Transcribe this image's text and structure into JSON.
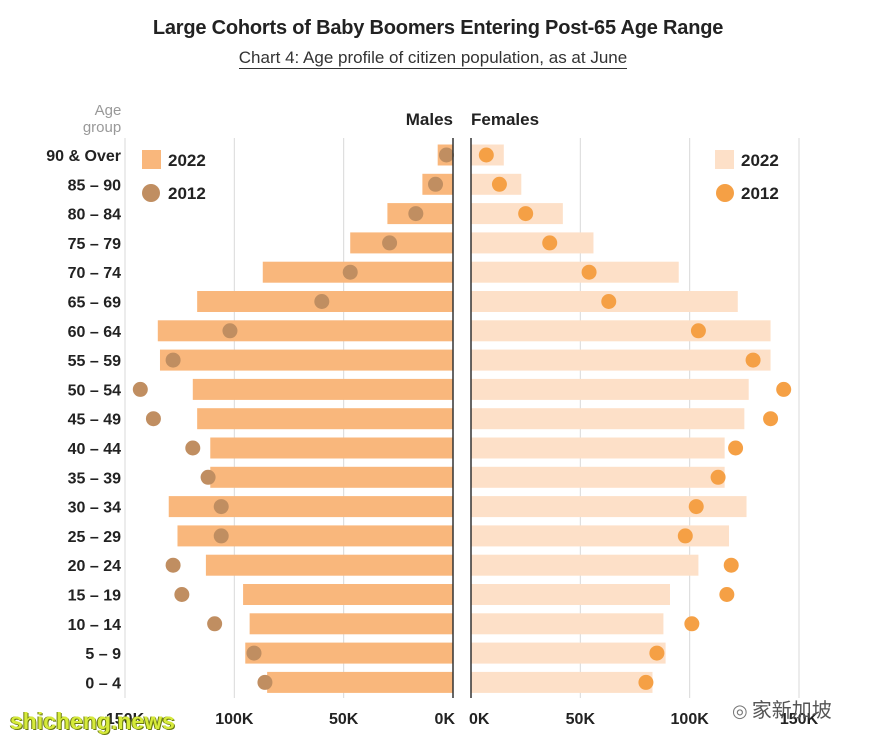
{
  "title": "Large Cohorts of Baby Boomers Entering Post-65 Age Range",
  "subtitle": "Chart 4: Age profile of citizen population, as at June",
  "colors": {
    "male_2022": "#f9b77c",
    "male_2012": "#c08e61",
    "female_2022": "#fde0c8",
    "female_2012": "#f5a045",
    "grid": "#d9d9d9",
    "axis": "#333333"
  },
  "watermark_left": "shicheng.news",
  "watermark_right": "家新加坡",
  "chart_data": {
    "type": "bar",
    "subtype": "population-pyramid",
    "title": "Large Cohorts of Baby Boomers Entering Post-65 Age Range",
    "subtitle": "Chart 4: Age profile of citizen population, as at June",
    "y_axis_label": "Age group",
    "panel_labels": {
      "left": "Males",
      "right": "Females"
    },
    "categories": [
      "90 & Over",
      "85 – 90",
      "80 – 84",
      "75 – 79",
      "70 – 74",
      "65 – 69",
      "60 – 64",
      "55 – 59",
      "50 – 54",
      "45 – 49",
      "40 – 44",
      "35 – 39",
      "30 – 34",
      "25 – 29",
      "20 – 24",
      "15 – 19",
      "10 – 14",
      "5 – 9",
      "0 – 4"
    ],
    "xlim": [
      0,
      150000
    ],
    "x_ticks": [
      {
        "value": 150000,
        "label": "150K"
      },
      {
        "value": 100000,
        "label": "100K"
      },
      {
        "value": 50000,
        "label": "50K"
      },
      {
        "value": 0,
        "label": "0K"
      }
    ],
    "legend": {
      "left": {
        "position": "top-left",
        "entries": [
          {
            "label": "2022",
            "marker": "bar"
          },
          {
            "label": "2012",
            "marker": "dot"
          }
        ]
      },
      "right": {
        "position": "top-right",
        "entries": [
          {
            "label": "2022",
            "marker": "bar"
          },
          {
            "label": "2012",
            "marker": "dot"
          }
        ]
      }
    },
    "series": [
      {
        "name": "Males 2022",
        "kind": "bar",
        "side": "left",
        "values": [
          7000,
          14000,
          30000,
          47000,
          87000,
          117000,
          135000,
          134000,
          119000,
          117000,
          111000,
          111000,
          130000,
          126000,
          113000,
          96000,
          93000,
          95000,
          85000
        ]
      },
      {
        "name": "Males 2012",
        "kind": "dot",
        "side": "left",
        "values": [
          3000,
          8000,
          17000,
          29000,
          47000,
          60000,
          102000,
          128000,
          143000,
          137000,
          119000,
          112000,
          106000,
          106000,
          128000,
          124000,
          109000,
          91000,
          86000
        ]
      },
      {
        "name": "Females 2022",
        "kind": "bar",
        "side": "right",
        "values": [
          15000,
          23000,
          42000,
          56000,
          95000,
          122000,
          137000,
          137000,
          127000,
          125000,
          116000,
          116000,
          126000,
          118000,
          104000,
          91000,
          88000,
          89000,
          83000
        ]
      },
      {
        "name": "Females 2012",
        "kind": "dot",
        "side": "right",
        "values": [
          7000,
          13000,
          25000,
          36000,
          54000,
          63000,
          104000,
          129000,
          143000,
          137000,
          121000,
          113000,
          103000,
          98000,
          119000,
          117000,
          101000,
          85000,
          80000
        ]
      }
    ],
    "grid": true
  }
}
